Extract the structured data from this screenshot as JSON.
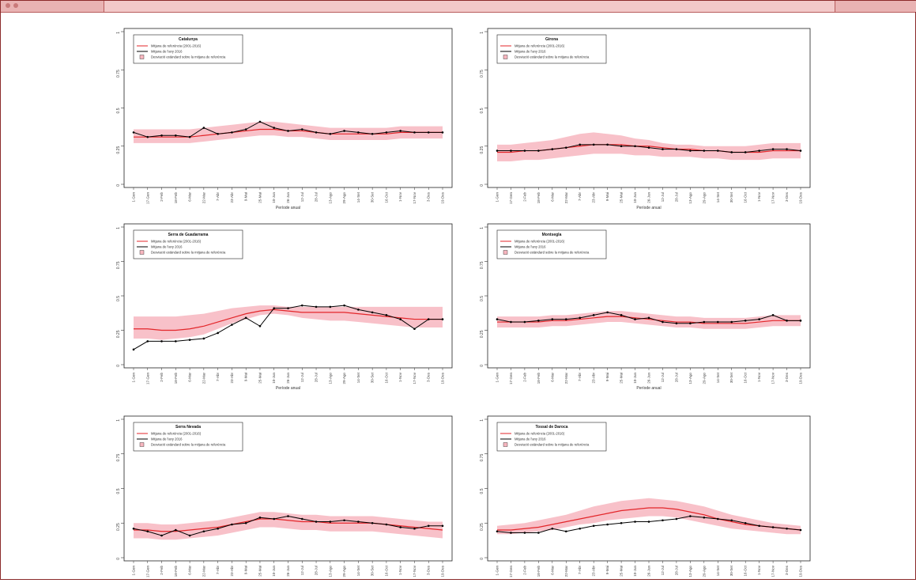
{
  "chart_data": [
    {
      "type": "line",
      "title": "Catalunya",
      "xlabel": "Període anual",
      "categories": [
        "1-Gen",
        "17-Gen",
        "2-Feb",
        "18-Feb",
        "6-Mar",
        "22-Mar",
        "7-Abr",
        "23-Abr",
        "9-Mai",
        "25-Mai",
        "10-Jun",
        "26-Jun",
        "12-Jul",
        "28-Jul",
        "13-Ago",
        "29-Ago",
        "14-Set",
        "30-Set",
        "16-Oct",
        "1-Nov",
        "17-Nov",
        "3-Des",
        "19-Des"
      ],
      "ylim": [
        0,
        1
      ],
      "yticks": [
        "0",
        "0.25",
        "0.5",
        "0.75",
        "1"
      ],
      "legend": [
        "Mitjana de referència (2001-2016)",
        "Mitjana de l'any 2016",
        "Desviació estàndard sobre la mitjana de referència"
      ],
      "series": [
        {
          "name": "Mitjana de referència (2001-2016)",
          "color": "#e3262a",
          "values": [
            0.31,
            0.31,
            0.31,
            0.31,
            0.31,
            0.32,
            0.33,
            0.34,
            0.35,
            0.36,
            0.36,
            0.35,
            0.35,
            0.34,
            0.33,
            0.33,
            0.33,
            0.33,
            0.33,
            0.34,
            0.34,
            0.34,
            0.34
          ]
        },
        {
          "name": "Mitjana de l'any 2016",
          "color": "#000000",
          "values": [
            0.34,
            0.31,
            0.32,
            0.32,
            0.31,
            0.37,
            0.33,
            0.34,
            0.36,
            0.41,
            0.37,
            0.35,
            0.36,
            0.34,
            0.33,
            0.35,
            0.34,
            0.33,
            0.34,
            0.35,
            0.34,
            0.34,
            0.34
          ]
        }
      ],
      "sd_band": {
        "lower": [
          0.27,
          0.27,
          0.27,
          0.27,
          0.27,
          0.28,
          0.29,
          0.3,
          0.31,
          0.32,
          0.32,
          0.31,
          0.31,
          0.3,
          0.29,
          0.29,
          0.29,
          0.29,
          0.29,
          0.3,
          0.3,
          0.3,
          0.3
        ],
        "upper": [
          0.36,
          0.36,
          0.36,
          0.36,
          0.36,
          0.37,
          0.38,
          0.39,
          0.4,
          0.41,
          0.41,
          0.4,
          0.39,
          0.38,
          0.37,
          0.37,
          0.37,
          0.37,
          0.37,
          0.38,
          0.38,
          0.38,
          0.38
        ]
      }
    },
    {
      "type": "line",
      "title": "Girona",
      "xlabel": "Període anual",
      "categories": [
        "1-Gen",
        "17-Gen",
        "2-Feb",
        "18-Feb",
        "6-Mar",
        "22-Mar",
        "7-Abr",
        "23-Abr",
        "9-Mai",
        "25-Mai",
        "10-Jun",
        "26-Jun",
        "12-Jul",
        "28-Jul",
        "13-Ago",
        "29-Ago",
        "14-Set",
        "30-Set",
        "16-Oct",
        "1-Nov",
        "17-Nov",
        "3-Des",
        "19-Des"
      ],
      "ylim": [
        0,
        1
      ],
      "yticks": [
        "0",
        "0.25",
        "0.5",
        "0.75",
        "1"
      ],
      "legend": [
        "Mitjana de referència (2001-2016)",
        "Mitjana de l'any 2016",
        "Desviació estàndard sobre la mitjana de referència"
      ],
      "series": [
        {
          "name": "Mitjana de referència (2001-2016)",
          "color": "#e3262a",
          "values": [
            0.21,
            0.21,
            0.22,
            0.22,
            0.23,
            0.24,
            0.25,
            0.26,
            0.26,
            0.26,
            0.25,
            0.25,
            0.24,
            0.23,
            0.23,
            0.22,
            0.22,
            0.21,
            0.21,
            0.21,
            0.22,
            0.22,
            0.22
          ]
        },
        {
          "name": "Mitjana de l'any 2016",
          "color": "#000000",
          "values": [
            0.22,
            0.22,
            0.22,
            0.22,
            0.23,
            0.24,
            0.26,
            0.26,
            0.26,
            0.25,
            0.25,
            0.24,
            0.23,
            0.23,
            0.22,
            0.22,
            0.22,
            0.21,
            0.21,
            0.22,
            0.23,
            0.23,
            0.22
          ]
        }
      ],
      "sd_band": {
        "lower": [
          0.15,
          0.15,
          0.16,
          0.16,
          0.17,
          0.18,
          0.19,
          0.2,
          0.2,
          0.2,
          0.19,
          0.19,
          0.18,
          0.18,
          0.18,
          0.17,
          0.17,
          0.16,
          0.16,
          0.16,
          0.17,
          0.17,
          0.17
        ],
        "upper": [
          0.26,
          0.26,
          0.27,
          0.28,
          0.29,
          0.31,
          0.33,
          0.34,
          0.33,
          0.32,
          0.3,
          0.29,
          0.27,
          0.26,
          0.26,
          0.25,
          0.25,
          0.25,
          0.25,
          0.26,
          0.27,
          0.27,
          0.27
        ]
      }
    },
    {
      "type": "line",
      "title": "Serra de Guadarrama",
      "xlabel": "Període anual",
      "categories": [
        "1-Gen",
        "17-Gen",
        "2-Feb",
        "18-Feb",
        "6-Mar",
        "22-Mar",
        "7-Abr",
        "23-Abr",
        "9-Mai",
        "25-Mai",
        "10-Jun",
        "26-Jun",
        "12-Jul",
        "28-Jul",
        "13-Ago",
        "29-Ago",
        "14-Set",
        "30-Set",
        "16-Oct",
        "1-Nov",
        "17-Nov",
        "3-Des",
        "19-Des"
      ],
      "ylim": [
        0,
        1
      ],
      "yticks": [
        "0",
        "0.25",
        "0.5",
        "0.75",
        "1"
      ],
      "legend": [
        "Mitjana de referència (2001-2016)",
        "Mitjana de l'any 2016",
        "Desviació estàndard sobre la mitjana de referència"
      ],
      "series": [
        {
          "name": "Mitjana de referència (2001-2016)",
          "color": "#e3262a",
          "values": [
            0.26,
            0.26,
            0.25,
            0.25,
            0.26,
            0.28,
            0.31,
            0.34,
            0.37,
            0.39,
            0.4,
            0.39,
            0.38,
            0.38,
            0.38,
            0.38,
            0.37,
            0.36,
            0.35,
            0.34,
            0.33,
            0.33,
            0.33
          ]
        },
        {
          "name": "Mitjana de l'any 2016",
          "color": "#000000",
          "values": [
            0.11,
            0.17,
            0.17,
            0.17,
            0.18,
            0.19,
            0.23,
            0.29,
            0.34,
            0.28,
            0.41,
            0.41,
            0.43,
            0.42,
            0.42,
            0.43,
            0.4,
            0.38,
            0.36,
            0.33,
            0.26,
            0.33,
            0.33
          ]
        }
      ],
      "sd_band": {
        "lower": [
          0.19,
          0.19,
          0.18,
          0.19,
          0.2,
          0.22,
          0.26,
          0.3,
          0.33,
          0.36,
          0.37,
          0.36,
          0.34,
          0.33,
          0.32,
          0.32,
          0.31,
          0.3,
          0.29,
          0.28,
          0.27,
          0.27,
          0.27
        ],
        "upper": [
          0.35,
          0.35,
          0.35,
          0.35,
          0.36,
          0.37,
          0.39,
          0.41,
          0.42,
          0.43,
          0.43,
          0.42,
          0.42,
          0.42,
          0.42,
          0.42,
          0.42,
          0.42,
          0.42,
          0.42,
          0.42,
          0.42,
          0.42
        ]
      }
    },
    {
      "type": "line",
      "title": "Montsegla",
      "xlabel": "Període anual",
      "categories": [
        "1-Gen",
        "17-Gen",
        "2-Feb",
        "18-Feb",
        "6-Mar",
        "22-Mar",
        "7-Abr",
        "23-Abr",
        "9-Mai",
        "25-Mai",
        "10-Jun",
        "26-Jun",
        "12-Jul",
        "28-Jul",
        "13-Ago",
        "29-Ago",
        "14-Set",
        "30-Set",
        "16-Oct",
        "1-Nov",
        "17-Nov",
        "3-Des",
        "19-Des"
      ],
      "ylim": [
        0,
        1
      ],
      "yticks": [
        "0",
        "0.25",
        "0.5",
        "0.75",
        "1"
      ],
      "legend": [
        "Mitjana de referència (2001-2016)",
        "Mitjana de l'any 2016",
        "Desviació estàndard sobre la mitjana de referència"
      ],
      "series": [
        {
          "name": "Mitjana de referència (2001-2016)",
          "color": "#e3262a",
          "values": [
            0.31,
            0.31,
            0.31,
            0.31,
            0.32,
            0.32,
            0.33,
            0.34,
            0.35,
            0.35,
            0.34,
            0.33,
            0.32,
            0.31,
            0.31,
            0.3,
            0.3,
            0.3,
            0.3,
            0.31,
            0.32,
            0.32,
            0.32
          ]
        },
        {
          "name": "Mitjana de l'any 2016",
          "color": "#000000",
          "values": [
            0.33,
            0.31,
            0.31,
            0.32,
            0.33,
            0.33,
            0.34,
            0.36,
            0.38,
            0.36,
            0.33,
            0.34,
            0.31,
            0.3,
            0.3,
            0.31,
            0.31,
            0.31,
            0.32,
            0.33,
            0.36,
            0.32,
            0.32
          ]
        }
      ],
      "sd_band": {
        "lower": [
          0.27,
          0.27,
          0.27,
          0.27,
          0.28,
          0.28,
          0.29,
          0.3,
          0.31,
          0.31,
          0.3,
          0.29,
          0.28,
          0.27,
          0.27,
          0.26,
          0.26,
          0.26,
          0.26,
          0.27,
          0.28,
          0.28,
          0.28
        ],
        "upper": [
          0.35,
          0.35,
          0.35,
          0.35,
          0.36,
          0.36,
          0.37,
          0.38,
          0.39,
          0.39,
          0.38,
          0.37,
          0.36,
          0.35,
          0.35,
          0.34,
          0.34,
          0.34,
          0.34,
          0.35,
          0.36,
          0.36,
          0.36
        ]
      }
    },
    {
      "type": "line",
      "title": "Serra Nevada",
      "xlabel": "Període anual",
      "categories": [
        "1-Gen",
        "17-Gen",
        "2-Feb",
        "18-Feb",
        "6-Mar",
        "22-Mar",
        "7-Abr",
        "23-Abr",
        "9-Mai",
        "25-Mai",
        "10-Jun",
        "26-Jun",
        "12-Jul",
        "28-Jul",
        "13-Ago",
        "29-Ago",
        "14-Set",
        "30-Set",
        "16-Oct",
        "1-Nov",
        "17-Nov",
        "3-Des",
        "19-Des"
      ],
      "ylim": [
        0,
        1
      ],
      "yticks": [
        "0",
        "0.25",
        "0.5",
        "0.75",
        "1"
      ],
      "legend": [
        "Mitjana de referència (2001-2016)",
        "Mitjana de l'any 2016",
        "Desviació estàndard sobre la mitjana de referència"
      ],
      "series": [
        {
          "name": "Mitjana de referència (2001-2016)",
          "color": "#e3262a",
          "values": [
            0.2,
            0.2,
            0.19,
            0.19,
            0.2,
            0.21,
            0.22,
            0.24,
            0.26,
            0.28,
            0.28,
            0.27,
            0.26,
            0.26,
            0.25,
            0.25,
            0.25,
            0.25,
            0.24,
            0.23,
            0.22,
            0.21,
            0.2
          ]
        },
        {
          "name": "Mitjana de l'any 2016",
          "color": "#000000",
          "values": [
            0.21,
            0.19,
            0.16,
            0.2,
            0.16,
            0.19,
            0.21,
            0.24,
            0.25,
            0.29,
            0.28,
            0.3,
            0.28,
            0.26,
            0.26,
            0.27,
            0.26,
            0.25,
            0.24,
            0.22,
            0.21,
            0.23,
            0.23
          ]
        }
      ],
      "sd_band": {
        "lower": [
          0.14,
          0.14,
          0.13,
          0.13,
          0.14,
          0.15,
          0.16,
          0.18,
          0.2,
          0.22,
          0.22,
          0.21,
          0.2,
          0.2,
          0.19,
          0.19,
          0.19,
          0.19,
          0.18,
          0.17,
          0.16,
          0.15,
          0.14
        ],
        "upper": [
          0.25,
          0.25,
          0.24,
          0.24,
          0.25,
          0.26,
          0.27,
          0.29,
          0.31,
          0.33,
          0.33,
          0.32,
          0.31,
          0.31,
          0.3,
          0.3,
          0.3,
          0.3,
          0.29,
          0.28,
          0.27,
          0.26,
          0.26
        ]
      }
    },
    {
      "type": "line",
      "title": "Tossal de Daroca",
      "xlabel": "Període anual",
      "categories": [
        "1-Gen",
        "17-Gen",
        "2-Feb",
        "18-Feb",
        "6-Mar",
        "22-Mar",
        "7-Abr",
        "23-Abr",
        "9-Mai",
        "25-Mai",
        "10-Jun",
        "26-Jun",
        "12-Jul",
        "28-Jul",
        "13-Ago",
        "29-Ago",
        "14-Set",
        "30-Set",
        "16-Oct",
        "1-Nov",
        "17-Nov",
        "3-Des",
        "19-Des"
      ],
      "ylim": [
        0,
        1
      ],
      "yticks": [
        "0",
        "0.25",
        "0.5",
        "0.75",
        "1"
      ],
      "legend": [
        "Mitjana de referència (2001-2016)",
        "Mitjana de l'any 2016",
        "Desviació estàndard sobre la mitjana de referència"
      ],
      "series": [
        {
          "name": "Mitjana de referència (2001-2016)",
          "color": "#e3262a",
          "values": [
            0.2,
            0.2,
            0.21,
            0.22,
            0.24,
            0.26,
            0.28,
            0.3,
            0.32,
            0.34,
            0.35,
            0.36,
            0.36,
            0.35,
            0.33,
            0.31,
            0.28,
            0.26,
            0.24,
            0.23,
            0.22,
            0.21,
            0.2
          ]
        },
        {
          "name": "Mitjana de l'any 2016",
          "color": "#000000",
          "values": [
            0.19,
            0.18,
            0.18,
            0.18,
            0.21,
            0.19,
            0.21,
            0.23,
            0.24,
            0.25,
            0.26,
            0.26,
            0.27,
            0.28,
            0.3,
            0.29,
            0.28,
            0.27,
            0.25,
            0.23,
            0.22,
            0.21,
            0.2
          ]
        }
      ],
      "sd_band": {
        "lower": [
          0.17,
          0.17,
          0.18,
          0.19,
          0.2,
          0.22,
          0.24,
          0.25,
          0.27,
          0.28,
          0.29,
          0.3,
          0.3,
          0.29,
          0.27,
          0.25,
          0.23,
          0.21,
          0.2,
          0.19,
          0.18,
          0.17,
          0.17
        ],
        "upper": [
          0.23,
          0.24,
          0.25,
          0.27,
          0.29,
          0.31,
          0.34,
          0.37,
          0.39,
          0.41,
          0.42,
          0.43,
          0.42,
          0.41,
          0.39,
          0.37,
          0.34,
          0.31,
          0.29,
          0.27,
          0.25,
          0.24,
          0.23
        ]
      }
    }
  ]
}
